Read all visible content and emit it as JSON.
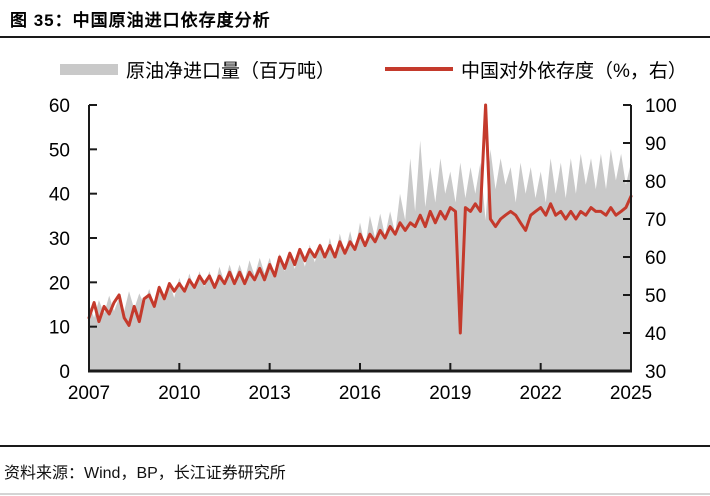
{
  "title": "图 35：中国原油进口依存度分析",
  "legend": {
    "imports_label": "原油净进口量（百万吨）",
    "dependence_label": "中国对外依存度（%，右）"
  },
  "source": "资料来源：Wind，BP，长江证券研究所",
  "colors": {
    "area": "#c9c9c9",
    "line": "#c43a2c",
    "axis": "#1a1a1a"
  },
  "chart_data": {
    "type": "area",
    "title": "中国原油进口依存度分析",
    "grid": false,
    "legend_position": "top",
    "x_axis": {
      "range": [
        2007,
        2025
      ],
      "ticks": [
        2007,
        2010,
        2013,
        2016,
        2019,
        2022,
        2025
      ]
    },
    "left_axis": {
      "range": [
        0,
        60
      ],
      "ticks": [
        0,
        10,
        20,
        30,
        40,
        50,
        60
      ],
      "series": "原油净进口量（百万吨）"
    },
    "right_axis": {
      "range": [
        30,
        100
      ],
      "ticks": [
        30,
        40,
        50,
        60,
        70,
        80,
        90,
        100
      ],
      "series": "中国对外依存度（%，右）"
    },
    "x": [
      2007,
      2007.17,
      2007.33,
      2007.5,
      2007.67,
      2007.83,
      2008,
      2008.17,
      2008.33,
      2008.5,
      2008.67,
      2008.83,
      2009,
      2009.17,
      2009.33,
      2009.5,
      2009.67,
      2009.83,
      2010,
      2010.17,
      2010.33,
      2010.5,
      2010.67,
      2010.83,
      2011,
      2011.17,
      2011.33,
      2011.5,
      2011.67,
      2011.83,
      2012,
      2012.17,
      2012.33,
      2012.5,
      2012.67,
      2012.83,
      2013,
      2013.17,
      2013.33,
      2013.5,
      2013.67,
      2013.83,
      2014,
      2014.17,
      2014.33,
      2014.5,
      2014.67,
      2014.83,
      2015,
      2015.17,
      2015.33,
      2015.5,
      2015.67,
      2015.83,
      2016,
      2016.17,
      2016.33,
      2016.5,
      2016.67,
      2016.83,
      2017,
      2017.17,
      2017.33,
      2017.5,
      2017.67,
      2017.83,
      2018,
      2018.17,
      2018.33,
      2018.5,
      2018.67,
      2018.83,
      2019,
      2019.17,
      2019.33,
      2019.5,
      2019.67,
      2019.83,
      2020,
      2020.17,
      2020.33,
      2020.5,
      2020.67,
      2020.83,
      2021,
      2021.17,
      2021.33,
      2021.5,
      2021.67,
      2021.83,
      2022,
      2022.17,
      2022.33,
      2022.5,
      2022.67,
      2022.83,
      2023,
      2023.17,
      2023.33,
      2023.5,
      2023.67,
      2023.83,
      2024,
      2024.17,
      2024.33,
      2024.5,
      2024.67,
      2024.83,
      2025
    ],
    "series": [
      {
        "name": "原油净进口量（百万吨）",
        "type": "area",
        "axis": "left",
        "color": "#c9c9c9",
        "values": [
          15,
          12,
          16,
          13,
          17,
          13.5,
          16.5,
          13.5,
          18,
          14,
          17.5,
          15,
          18.5,
          15,
          19.5,
          16,
          20,
          16.5,
          21,
          17.5,
          22,
          18.5,
          22.5,
          19,
          22.5,
          19,
          23.5,
          20,
          24,
          20.5,
          24,
          20.5,
          25,
          21.5,
          25.5,
          22,
          25.5,
          21.5,
          26.5,
          22.5,
          27,
          23,
          27.5,
          23.5,
          28.5,
          24.5,
          29,
          25,
          30,
          25,
          31,
          26.5,
          31.5,
          27,
          33.5,
          28,
          35,
          30,
          35.5,
          30.5,
          36,
          31,
          40,
          34,
          48,
          36,
          52,
          37,
          46,
          38,
          48,
          40,
          45,
          38,
          47,
          39,
          46,
          40,
          47,
          34,
          50,
          41,
          48,
          42,
          46,
          38,
          47,
          40,
          46,
          39,
          45,
          38,
          48,
          40,
          47,
          39,
          48,
          40,
          49,
          42,
          48,
          41,
          49,
          41,
          50,
          43,
          49,
          42,
          47
        ]
      },
      {
        "name": "中国对外依存度（%，右）",
        "type": "line",
        "axis": "right",
        "color": "#c43a2c",
        "values": [
          44,
          48,
          43,
          47,
          45,
          48,
          50,
          44,
          42,
          47,
          43,
          49,
          50,
          47,
          52,
          49,
          53,
          51,
          53,
          51,
          54,
          52,
          55,
          53,
          55,
          52,
          55,
          53,
          56,
          53,
          56,
          53,
          56,
          54,
          57,
          54,
          58,
          55,
          60,
          57,
          61,
          58,
          62,
          59,
          62,
          60,
          63,
          60,
          63,
          60,
          64,
          61,
          64,
          62,
          66,
          63,
          66,
          64,
          67,
          65,
          68,
          66,
          69,
          67,
          69,
          68,
          71,
          68,
          72,
          69,
          72,
          70,
          73,
          72,
          40,
          73,
          72,
          74,
          72,
          100,
          70,
          68,
          70,
          71,
          72,
          71,
          69,
          67,
          71,
          72,
          73,
          71,
          74,
          71,
          72,
          70,
          72,
          70,
          72,
          71,
          73,
          72,
          72,
          71,
          73,
          71,
          72,
          73,
          76
        ]
      }
    ]
  }
}
